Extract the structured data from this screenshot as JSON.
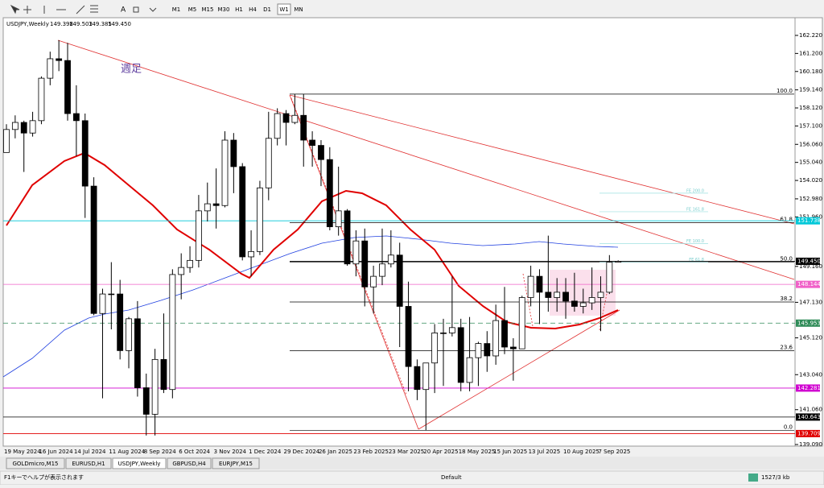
{
  "toolbar": {
    "timeframes": [
      "M1",
      "M5",
      "M15",
      "M30",
      "H1",
      "H4",
      "D1",
      "W1",
      "MN"
    ],
    "active": "W1"
  },
  "chart_data": {
    "type": "candlestick",
    "title": "USDJPY,Weekly",
    "header_values": [
      "149.398",
      "149.503",
      "149.385",
      "149.450"
    ],
    "annotation": "週足",
    "categories": [
      "19 May 2024",
      null,
      null,
      null,
      "16 Jun 2024",
      null,
      null,
      null,
      "14 Jul 2024",
      null,
      null,
      null,
      "11 Aug 2024",
      null,
      null,
      null,
      "8 Sep 2024",
      null,
      null,
      null,
      "6 Oct 2024",
      null,
      null,
      null,
      "3 Nov 2024",
      null,
      null,
      null,
      "1 Dec 2024",
      null,
      null,
      null,
      "29 Dec 2024",
      null,
      null,
      null,
      "26 Jan 2025",
      null,
      null,
      null,
      "23 Feb 2025",
      null,
      null,
      null,
      "23 Mar 2025",
      null,
      null,
      null,
      "20 Apr 2025",
      null,
      null,
      null,
      "18 May 2025",
      null,
      null,
      null,
      "15 Jun 2025",
      null,
      null,
      null,
      "13 Jul 2025",
      null,
      null,
      null,
      "10 Aug 2025",
      null,
      null,
      null,
      "7 Sep 2025",
      null,
      null
    ],
    "open": [
      155.6,
      156.9,
      157.3,
      156.7,
      157.4,
      159.8,
      160.9,
      160.8,
      157.8,
      157.4,
      153.7,
      146.5,
      147.6,
      147.6,
      144.4,
      146.2,
      142.3,
      140.8,
      143.9,
      142.2,
      148.7,
      149.1,
      149.5,
      152.3,
      152.7,
      152.6,
      156.3,
      154.8,
      149.7,
      150.0,
      153.6,
      156.4,
      157.8,
      157.3,
      157.7,
      156.3,
      156.0,
      155.2,
      151.4,
      152.3,
      149.3,
      150.6,
      148.0,
      148.6,
      149.3,
      149.8,
      146.9,
      143.5,
      142.2,
      143.7,
      145.4,
      145.4,
      145.7,
      142.6,
      144.0,
      144.8,
      144.1,
      146.1,
      144.6,
      144.5,
      147.4,
      148.6,
      147.7,
      147.4,
      147.7,
      147.2,
      146.9,
      147.1,
      147.4,
      147.7,
      149.398
    ],
    "high": [
      157.2,
      157.7,
      157.4,
      157.9,
      159.9,
      161.3,
      161.95,
      161.8,
      159.4,
      157.8,
      154.2,
      147.9,
      149.4,
      148.4,
      146.3,
      147.2,
      143.1,
      144.5,
      146.5,
      149.0,
      149.9,
      150.3,
      153.2,
      153.9,
      154.7,
      156.8,
      156.7,
      155.0,
      151.2,
      154.0,
      157.9,
      158.1,
      158.0,
      158.9,
      158.9,
      156.8,
      156.3,
      155.9,
      154.8,
      152.4,
      151.2,
      151.3,
      149.2,
      151.3,
      151.2,
      150.5,
      148.3,
      143.9,
      143.7,
      145.9,
      146.2,
      148.6,
      146.2,
      146.3,
      144.9,
      145.5,
      147.0,
      148.0,
      145.1,
      147.5,
      149.2,
      149.0,
      150.9,
      148.5,
      148.5,
      148.8,
      147.9,
      149.1,
      148.6,
      149.8,
      149.503
    ],
    "low": [
      155.6,
      156.4,
      154.5,
      156.5,
      157.2,
      159.4,
      160.2,
      157.4,
      155.4,
      151.9,
      146.4,
      141.7,
      145.6,
      143.9,
      143.4,
      141.8,
      139.6,
      139.6,
      142.0,
      141.7,
      147.3,
      148.8,
      149.1,
      151.7,
      151.3,
      152.5,
      153.3,
      149.5,
      148.6,
      149.8,
      152.9,
      156.0,
      156.0,
      157.2,
      154.8,
      154.8,
      153.7,
      151.2,
      150.9,
      149.2,
      148.6,
      146.9,
      146.5,
      148.1,
      149.1,
      144.6,
      142.1,
      141.6,
      139.9,
      142.0,
      142.4,
      145.2,
      142.1,
      142.1,
      142.4,
      143.2,
      143.6,
      144.2,
      142.7,
      144.5,
      146.9,
      145.9,
      146.6,
      146.6,
      146.2,
      146.6,
      146.5,
      146.7,
      145.5,
      147.6,
      149.385
    ],
    "close": [
      156.9,
      157.3,
      156.7,
      157.4,
      159.8,
      160.9,
      160.8,
      157.8,
      157.4,
      153.7,
      146.5,
      147.6,
      147.6,
      144.4,
      146.2,
      142.3,
      140.8,
      143.9,
      142.2,
      148.7,
      149.1,
      149.5,
      152.3,
      152.7,
      152.6,
      156.3,
      154.8,
      149.7,
      150.0,
      153.6,
      156.4,
      157.8,
      157.3,
      157.7,
      156.3,
      156.0,
      155.2,
      151.4,
      152.3,
      149.3,
      150.6,
      148.0,
      148.6,
      149.3,
      149.8,
      146.9,
      143.5,
      142.2,
      143.7,
      145.4,
      145.4,
      145.7,
      142.6,
      144.0,
      144.8,
      144.1,
      146.1,
      144.6,
      144.5,
      147.4,
      148.6,
      147.7,
      147.4,
      147.7,
      147.2,
      146.9,
      147.1,
      147.4,
      147.7,
      149.398,
      149.45
    ],
    "up_color": "#ffffff",
    "down_color": "#000000",
    "ylim": [
      139.045,
      163.22
    ],
    "yticks": [
      {
        "value": 162.22,
        "label": "162.220"
      },
      {
        "value": 161.2,
        "label": "161.200"
      },
      {
        "value": 160.18,
        "label": "160.180"
      },
      {
        "value": 159.14,
        "label": "159.140"
      },
      {
        "value": 158.12,
        "label": "158.120"
      },
      {
        "value": 157.1,
        "label": "157.100"
      },
      {
        "value": 156.06,
        "label": "156.060"
      },
      {
        "value": 155.04,
        "label": "155.040"
      },
      {
        "value": 154.02,
        "label": "154.020"
      },
      {
        "value": 152.98,
        "label": "152.980"
      },
      {
        "value": 151.96,
        "label": "151.960"
      },
      {
        "value": 149.16,
        "label": "149.160"
      },
      {
        "value": 147.13,
        "label": "147.130"
      },
      {
        "value": 145.12,
        "label": "145.120"
      },
      {
        "value": 143.04,
        "label": "143.040"
      },
      {
        "value": 141.06,
        "label": "141.060"
      },
      {
        "value": 139.09,
        "label": "139.090"
      }
    ],
    "levels": [
      {
        "value": 151.738,
        "label": "151.738",
        "color": "#00c8d8"
      },
      {
        "value": 148.144,
        "label": "148.144",
        "color": "#f060c8"
      },
      {
        "value": 145.953,
        "label": "145.953",
        "color": "#2e8b57"
      },
      {
        "value": 142.281,
        "label": "142.281",
        "color": "#d000d0"
      },
      {
        "value": 140.643,
        "label": "140.643",
        "color": "#000000"
      },
      {
        "value": 139.709,
        "label": "139.709",
        "color": "#e00000"
      },
      {
        "value": 149.45,
        "label": "149.450",
        "color": "#000000"
      }
    ],
    "fib": [
      {
        "value": 158.9,
        "label": "100.0"
      },
      {
        "value": 151.64,
        "label": "61.8"
      },
      {
        "value": 149.4,
        "label": "50.0"
      },
      {
        "value": 147.15,
        "label": "38.2"
      },
      {
        "value": 144.4,
        "label": "23.6"
      },
      {
        "value": 139.89,
        "label": "0.0"
      }
    ],
    "fe": [
      {
        "value": 153.3,
        "label": "FE 200.0"
      },
      {
        "value": 152.25,
        "label": "FE 161.8"
      },
      {
        "value": 150.45,
        "label": "FE 100.0"
      },
      {
        "value": 149.4,
        "label": "FE 61.8"
      }
    ]
  },
  "tabs": [
    "GOLDmicro,M15",
    "EURUSD,H1",
    "USDJPY,Weekly",
    "GBPUSD,H4",
    "EURJPY,M15"
  ],
  "status": {
    "help": "F1キーでヘルプが表示されます",
    "profile": "Default",
    "traffic": "1527/3 kb"
  }
}
